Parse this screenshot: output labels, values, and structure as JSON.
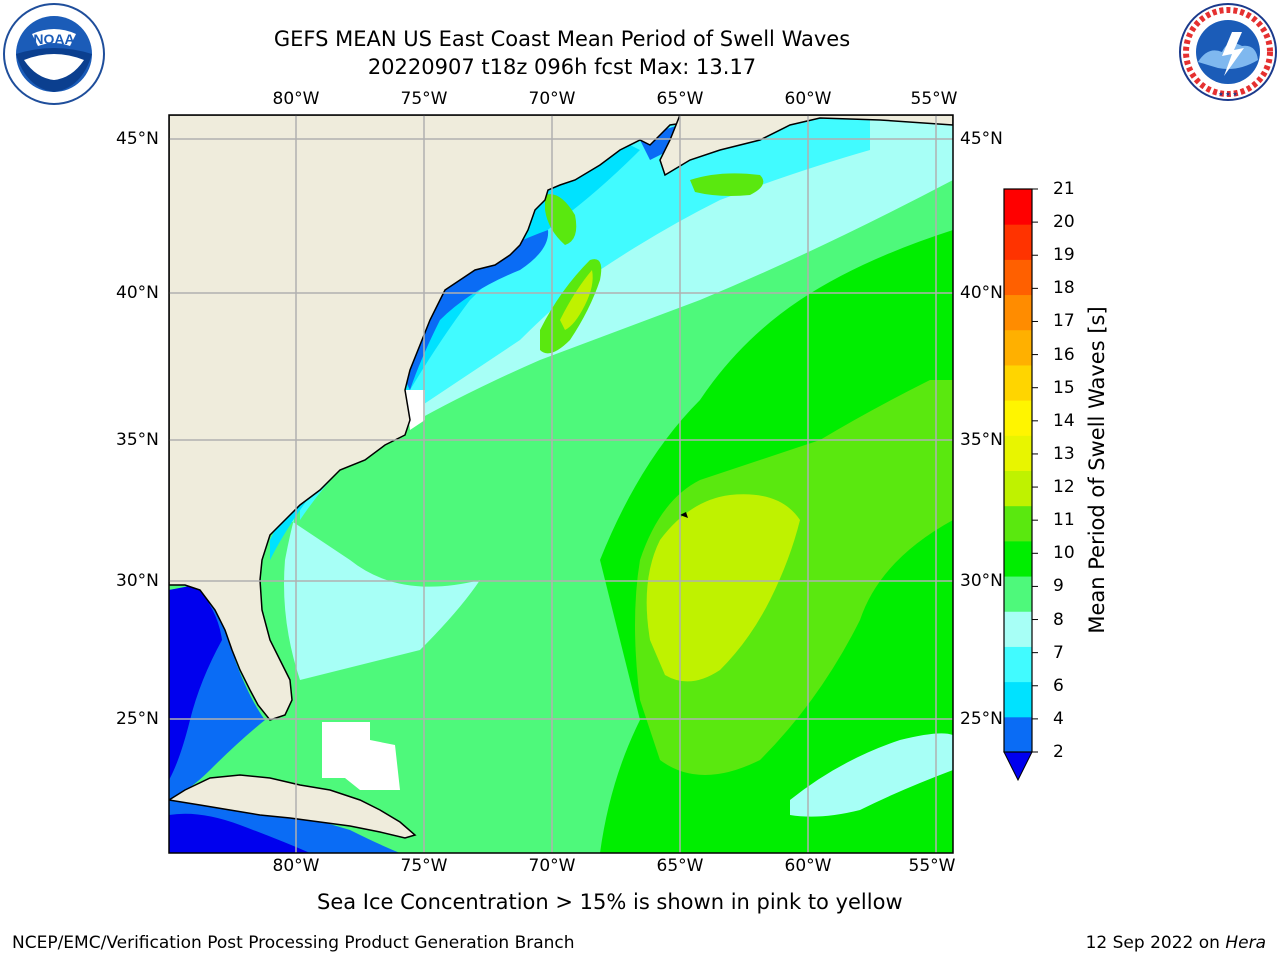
{
  "header": {
    "title_line1": "GEFS MEAN US East Coast Mean Period of Swell Waves",
    "title_line2": "20220907 t18z 096h fcst   Max: 13.17"
  },
  "map": {
    "lon_labels": [
      "80°W",
      "75°W",
      "70°W",
      "65°W",
      "60°W",
      "55°W"
    ],
    "lat_labels": [
      "45°N",
      "40°N",
      "35°N",
      "30°N",
      "25°N"
    ],
    "land_color": "#efecdc",
    "grid_color": "#b0b0b0"
  },
  "colorbar": {
    "label": "Mean Period of Swell Waves [s]",
    "ticks": [
      "2",
      "4",
      "6",
      "7",
      "8",
      "9",
      "10",
      "11",
      "12",
      "13",
      "14",
      "15",
      "16",
      "17",
      "18",
      "19",
      "20",
      "21"
    ],
    "colors": [
      "#0a6cf5",
      "#00e2ff",
      "#41fbff",
      "#a7fff6",
      "#4ef97b",
      "#00ee00",
      "#5ae80f",
      "#bff200",
      "#e8f500",
      "#fff500",
      "#ffd500",
      "#ffb000",
      "#ff8c00",
      "#ff6000",
      "#ff3300",
      "#ff0000"
    ],
    "under_color": "#0000ee"
  },
  "note": "Sea Ice Concentration > 15% is shown in pink to yellow",
  "footer": {
    "left": "NCEP/EMC/Verification Post Processing Product Generation Branch",
    "date": "12 Sep 2022 on ",
    "host": "Hera"
  },
  "logos": {
    "noaa_text": "NOAA",
    "nws_text": "NATIONAL WEATHER SERVICE"
  }
}
